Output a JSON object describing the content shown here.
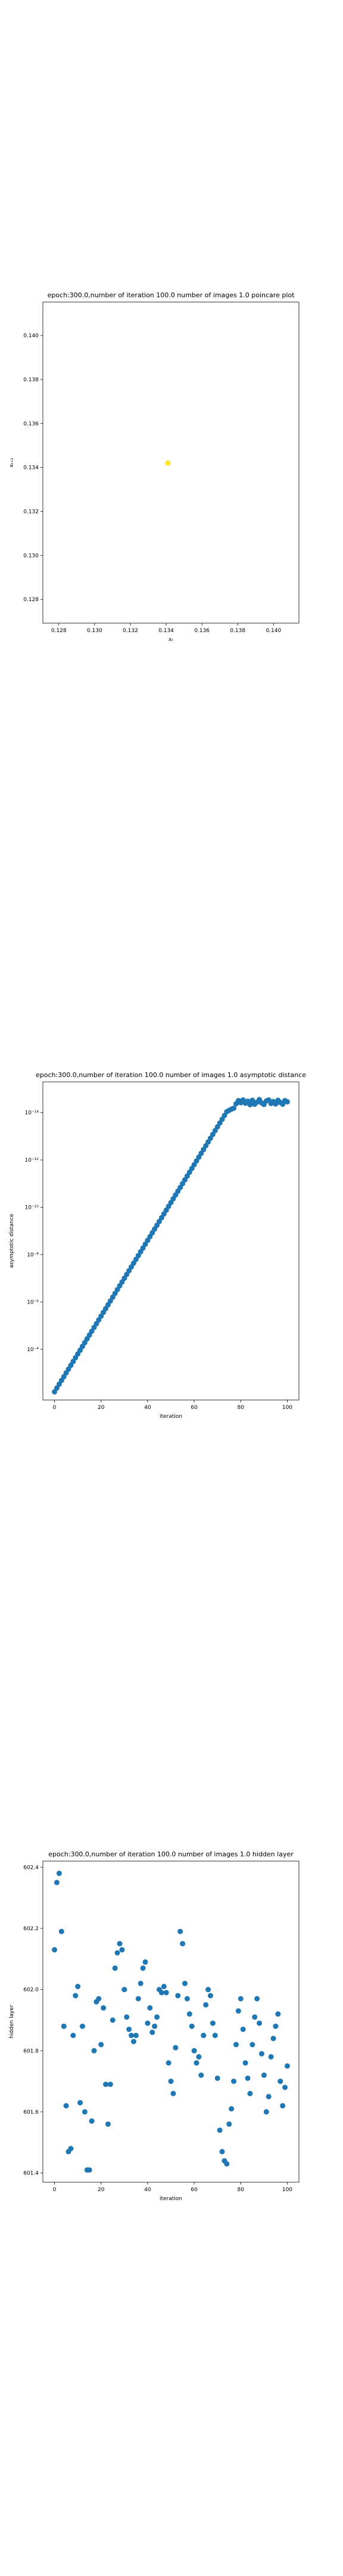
{
  "chart_data": [
    {
      "type": "scatter",
      "title": "epoch:300.0,number of iteration 100.0 number of images 1.0 poincare plot",
      "x_label": "xₜ",
      "y_label": "xₜ₊₁",
      "series": [
        {
          "color": "#fde725",
          "x": [
            0.1341
          ],
          "values": [
            0.1342
          ]
        }
      ],
      "xlim": [
        0.12711,
        0.14142
      ],
      "ylim": [
        0.12692,
        0.14152
      ],
      "xticks": [
        0.128,
        {
          "value": 0.13,
          "label": "0.130"
        },
        0.132,
        0.134,
        0.136,
        0.138,
        {
          "value": 0.14,
          "label": "0.140"
        }
      ],
      "yticks": [
        0.128,
        {
          "value": 0.13,
          "label": "0.130"
        },
        0.132,
        0.134,
        0.136,
        0.138,
        {
          "value": 0.14,
          "label": "0.140"
        }
      ]
    },
    {
      "type": "scatter",
      "title": "epoch:300.0,number of iteration 100.0  number of images 1.0 asymptotic distance",
      "x_label": "iteration",
      "y_label": "asymptotic distance",
      "ylog": true,
      "series": [
        {
          "color": "#1f77b4",
          "x": [
            0,
            1,
            2,
            3,
            4,
            5,
            6,
            7,
            8,
            9,
            10,
            11,
            12,
            13,
            14,
            15,
            16,
            17,
            18,
            19,
            20,
            21,
            22,
            23,
            24,
            25,
            26,
            27,
            28,
            29,
            30,
            31,
            32,
            33,
            34,
            35,
            36,
            37,
            38,
            39,
            40,
            41,
            42,
            43,
            44,
            45,
            46,
            47,
            48,
            49,
            50,
            51,
            52,
            53,
            54,
            55,
            56,
            57,
            58,
            59,
            60,
            61,
            62,
            63,
            64,
            65,
            66,
            67,
            68,
            69,
            70,
            71,
            72,
            73,
            74,
            75,
            76,
            77,
            78,
            79,
            80,
            81,
            82,
            83,
            84,
            85,
            86,
            87,
            88,
            89,
            90,
            91,
            92,
            93,
            94,
            95,
            96,
            97,
            98,
            99,
            100
          ],
          "values": [
            0.00631,
            0.00437,
            0.00302,
            0.00209,
            0.00145,
            0.001,
            0.000692,
            0.000479,
            0.000331,
            0.000229,
            0.000158,
            0.00011,
            7.59e-05,
            5.25e-05,
            3.63e-05,
            2.51e-05,
            1.74e-05,
            1.2e-05,
            8.32e-06,
            5.75e-06,
            3.98e-06,
            2.75e-06,
            1.91e-06,
            1.32e-06,
            9.12e-07,
            6.31e-07,
            4.37e-07,
            3.02e-07,
            2.09e-07,
            1.45e-07,
            1e-07,
            6.92e-08,
            4.79e-08,
            3.31e-08,
            2.29e-08,
            1.58e-08,
            1.1e-08,
            7.59e-09,
            5.25e-09,
            3.63e-09,
            2.51e-09,
            1.74e-09,
            1.2e-09,
            8.32e-10,
            5.75e-10,
            3.98e-10,
            2.75e-10,
            1.91e-10,
            1.32e-10,
            9.12e-11,
            6.31e-11,
            4.37e-11,
            3.02e-11,
            2.09e-11,
            1.45e-11,
            1e-11,
            6.92e-12,
            4.79e-12,
            3.31e-12,
            2.29e-12,
            1.58e-12,
            1.1e-12,
            7.59e-13,
            5.25e-13,
            3.63e-13,
            2.51e-13,
            1.74e-13,
            1.2e-13,
            8.32e-14,
            5.75e-14,
            3.98e-14,
            2.75e-14,
            1.91e-14,
            1.32e-14,
            9.12e-15,
            8e-15,
            7.1e-15,
            6.5e-15,
            4.2e-15,
            3.1e-15,
            3.8e-15,
            2.9e-15,
            4e-15,
            3.3e-15,
            4.6e-15,
            3e-15,
            4.4e-15,
            3.6e-15,
            2.8e-15,
            3.9e-15,
            4.5e-15,
            3.2e-15,
            2.9e-15,
            4.1e-15,
            3.4e-15,
            4.3e-15,
            3e-15,
            3.7e-15,
            4.4e-15,
            3.1e-15,
            3.5e-15
          ]
        }
      ],
      "xlim": [
        -5,
        105
      ],
      "ylim": [
        0.014,
        5e-16
      ],
      "xticks": [
        0,
        20,
        40,
        60,
        80,
        100
      ],
      "yticks": [
        {
          "value": 0.0001,
          "label": "10⁻⁴"
        },
        {
          "value": 1e-06,
          "label": "10⁻⁶"
        },
        {
          "value": 1e-08,
          "label": "10⁻⁸"
        },
        {
          "value": 1e-10,
          "label": "10⁻¹⁰"
        },
        {
          "value": 1e-12,
          "label": "10⁻¹²"
        },
        {
          "value": 1e-14,
          "label": "10⁻¹⁴"
        }
      ]
    },
    {
      "type": "scatter",
      "title": "epoch:300.0,number of iteration 100.0  number of images 1.0 hidden layer",
      "x_label": "iteration",
      "y_label": "hidden layer",
      "series": [
        {
          "color": "#1f77b4",
          "x": [
            0,
            1,
            2,
            3,
            4,
            5,
            6,
            7,
            8,
            9,
            10,
            11,
            12,
            13,
            14,
            15,
            16,
            17,
            18,
            19,
            20,
            21,
            22,
            23,
            24,
            25,
            26,
            27,
            28,
            29,
            30,
            31,
            32,
            33,
            34,
            35,
            36,
            37,
            38,
            39,
            40,
            41,
            42,
            43,
            44,
            45,
            46,
            47,
            48,
            49,
            50,
            51,
            52,
            53,
            54,
            55,
            56,
            57,
            58,
            59,
            60,
            61,
            62,
            63,
            64,
            65,
            66,
            67,
            68,
            69,
            70,
            71,
            72,
            73,
            74,
            75,
            76,
            77,
            78,
            79,
            80,
            81,
            82,
            83,
            84,
            85,
            86,
            87,
            88,
            89,
            90,
            91,
            92,
            93,
            94,
            95,
            96,
            97,
            98,
            99,
            100
          ],
          "values": [
            602.13,
            602.35,
            602.38,
            602.19,
            601.88,
            601.62,
            601.47,
            601.48,
            601.85,
            601.98,
            602.01,
            601.63,
            601.88,
            601.6,
            601.41,
            601.41,
            601.57,
            601.8,
            601.96,
            601.97,
            601.82,
            601.94,
            601.69,
            601.56,
            601.69,
            601.9,
            602.07,
            602.12,
            602.15,
            602.13,
            602.0,
            601.91,
            601.87,
            601.85,
            601.83,
            601.85,
            601.97,
            602.02,
            602.07,
            602.09,
            601.89,
            601.94,
            601.86,
            601.88,
            601.91,
            602.0,
            601.99,
            602.01,
            601.99,
            601.76,
            601.7,
            601.66,
            601.81,
            601.98,
            602.19,
            602.15,
            602.02,
            601.97,
            601.92,
            601.88,
            601.8,
            601.76,
            601.78,
            601.72,
            601.85,
            601.95,
            602.0,
            601.98,
            601.89,
            601.85,
            601.71,
            601.54,
            601.47,
            601.44,
            601.43,
            601.56,
            601.61,
            601.7,
            601.82,
            601.93,
            601.97,
            601.87,
            601.76,
            601.71,
            601.66,
            601.82,
            601.91,
            601.97,
            601.89,
            601.79,
            601.72,
            601.6,
            601.65,
            601.78,
            601.84,
            601.88,
            601.92,
            601.7,
            601.62,
            601.68,
            601.75
          ]
        }
      ],
      "xlim": [
        -5,
        105
      ],
      "ylim": [
        601.37,
        602.42
      ],
      "xticks": [
        0,
        20,
        40,
        60,
        80,
        100
      ],
      "yticks": [
        601.4,
        601.6,
        601.8,
        {
          "value": 602.0,
          "label": "602.0"
        },
        602.2,
        602.4
      ]
    }
  ]
}
